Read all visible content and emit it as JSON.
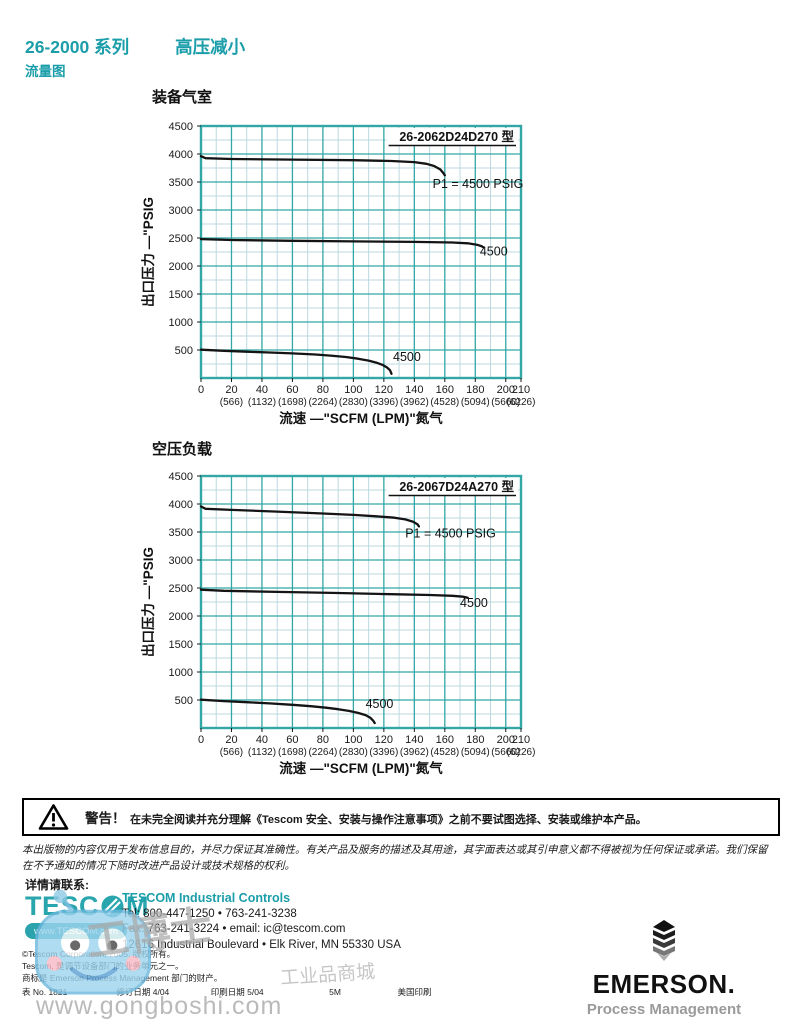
{
  "header": {
    "title": "26-2000 系列",
    "title2": "高压减小",
    "section": "流量图"
  },
  "colors": {
    "accent_teal": "#1b9ea9",
    "grid_major": "#33a6a6",
    "grid_minor": "#bcd9e0",
    "curve": "#141414"
  },
  "chart_data": [
    {
      "type": "line",
      "title": "装备气室",
      "model_label": "26-2062D24D270 型",
      "xlabel": "流速 —\"SCFM (LPM)\"氮气",
      "ylabel": "出口压力 —\"PSIG",
      "xlim": [
        0,
        210
      ],
      "ylim": [
        0,
        4500
      ],
      "x_major": 20,
      "x_minor": 10,
      "y_major": 500,
      "y_minor": 250,
      "x_ticks": [
        0,
        20,
        40,
        60,
        80,
        100,
        120,
        140,
        160,
        180,
        200,
        210
      ],
      "x_ticks_lpm": [
        "(566)",
        "(1132)",
        "(1698)",
        "(2264)",
        "(2830)",
        "(3396)",
        "(3962)",
        "(4528)",
        "(5094)",
        "(5660)",
        "(6226)"
      ],
      "y_ticks": [
        500,
        1000,
        1500,
        2000,
        2500,
        3000,
        3500,
        4000,
        4500
      ],
      "grid": true,
      "series": [
        {
          "name": "P1 = 4500 PSIG (outlet ~3900 PSIG)",
          "points": [
            [
              0,
              3960
            ],
            [
              3,
              3925
            ],
            [
              20,
              3910
            ],
            [
              60,
              3900
            ],
            [
              100,
              3890
            ],
            [
              125,
              3875
            ],
            [
              140,
              3855
            ],
            [
              148,
              3825
            ],
            [
              153,
              3785
            ],
            [
              157,
              3725
            ],
            [
              159,
              3660
            ],
            [
              160,
              3620
            ]
          ]
        },
        {
          "name": "outlet ~2450 PSIG, P1 = 4500",
          "points": [
            [
              0,
              2480
            ],
            [
              20,
              2465
            ],
            [
              60,
              2450
            ],
            [
              100,
              2440
            ],
            [
              140,
              2430
            ],
            [
              165,
              2420
            ],
            [
              175,
              2405
            ],
            [
              181,
              2380
            ],
            [
              184,
              2355
            ],
            [
              185,
              2340
            ]
          ]
        },
        {
          "name": "outlet ~500 PSIG, P1 = 4500",
          "points": [
            [
              0,
              505
            ],
            [
              15,
              485
            ],
            [
              30,
              470
            ],
            [
              45,
              455
            ],
            [
              60,
              440
            ],
            [
              75,
              420
            ],
            [
              85,
              400
            ],
            [
              95,
              375
            ],
            [
              103,
              345
            ],
            [
              110,
              310
            ],
            [
              115,
              275
            ],
            [
              119,
              235
            ],
            [
              122,
              190
            ],
            [
              124,
              140
            ],
            [
              125,
              75
            ]
          ]
        }
      ],
      "annotations": [
        {
          "text": "P1 = 4500 PSIG",
          "x": 152,
          "y": 3390,
          "anchor": "start"
        },
        {
          "text": "4500",
          "x": 183,
          "y": 2185,
          "anchor": "start"
        },
        {
          "text": "4500",
          "x": 126,
          "y": 300,
          "anchor": "start"
        }
      ]
    },
    {
      "type": "line",
      "title": "空压负载",
      "model_label": "26-2067D24A270 型",
      "xlabel": "流速 —\"SCFM (LPM)\"氮气",
      "ylabel": "出口压力 —\"PSIG",
      "xlim": [
        0,
        210
      ],
      "ylim": [
        0,
        4500
      ],
      "x_major": 20,
      "x_minor": 10,
      "y_major": 500,
      "y_minor": 250,
      "x_ticks": [
        0,
        20,
        40,
        60,
        80,
        100,
        120,
        140,
        160,
        180,
        200,
        210
      ],
      "x_ticks_lpm": [
        "(566)",
        "(1132)",
        "(1698)",
        "(2264)",
        "(2830)",
        "(3396)",
        "(3962)",
        "(4528)",
        "(5094)",
        "(5660)",
        "(6226)"
      ],
      "y_ticks": [
        500,
        1000,
        1500,
        2000,
        2500,
        3000,
        3500,
        4000,
        4500
      ],
      "grid": true,
      "series": [
        {
          "name": "P1 = 4500 PSIG (outlet ~3900 PSIG)",
          "points": [
            [
              0,
              3955
            ],
            [
              3,
              3915
            ],
            [
              20,
              3895
            ],
            [
              50,
              3865
            ],
            [
              80,
              3830
            ],
            [
              100,
              3805
            ],
            [
              115,
              3780
            ],
            [
              127,
              3755
            ],
            [
              134,
              3725
            ],
            [
              139,
              3685
            ],
            [
              142,
              3640
            ],
            [
              143,
              3600
            ]
          ]
        },
        {
          "name": "outlet ~2450 PSIG, P1 = 4500",
          "points": [
            [
              0,
              2470
            ],
            [
              15,
              2450
            ],
            [
              50,
              2430
            ],
            [
              90,
              2410
            ],
            [
              125,
              2390
            ],
            [
              150,
              2375
            ],
            [
              165,
              2360
            ],
            [
              172,
              2345
            ],
            [
              175,
              2325
            ]
          ]
        },
        {
          "name": "outlet ~500 PSIG, P1 = 4500",
          "points": [
            [
              0,
              505
            ],
            [
              15,
              480
            ],
            [
              30,
              460
            ],
            [
              45,
              440
            ],
            [
              60,
              415
            ],
            [
              72,
              390
            ],
            [
              82,
              362
            ],
            [
              90,
              335
            ],
            [
              97,
              305
            ],
            [
              103,
              270
            ],
            [
              108,
              230
            ],
            [
              111,
              185
            ],
            [
              113,
              130
            ],
            [
              114,
              90
            ]
          ]
        }
      ],
      "annotations": [
        {
          "text": "P1 = 4500 PSIG",
          "x": 134,
          "y": 3400,
          "anchor": "start"
        },
        {
          "text": "4500",
          "x": 170,
          "y": 2165,
          "anchor": "start"
        },
        {
          "text": "4500",
          "x": 108,
          "y": 355,
          "anchor": "start"
        }
      ]
    }
  ],
  "warning": {
    "label": "警告！",
    "text": "在未完全阅读并充分理解《Tescom 安全、安装与操作注意事项》之前不要试图选择、安装或维护本产品。"
  },
  "disclaimer": "本出版物的内容仅用于发布信息目的，并尽力保证其准确性。有关产品及服务的描述及其用途，其字面表达或其引申意义都不得被视为任何保证或承诺。我们保留在不予通知的情况下随时改进产品设计或技术规格的权利。",
  "contact_heading": "详情请联系:",
  "tescom_logo": {
    "text_left": "TESC",
    "text_right": "M",
    "url_pill": "www.TESCOM.com"
  },
  "contact": {
    "company": "TESCOM Industrial Controls",
    "lines": [
      "Tel: 800-447-1250  •  763-241-3238",
      "Fax: 763-241-3224  •  email: ic@tescom.com",
      "12616 Industrial Boulevard  •  Elk River, MN 55330 USA"
    ]
  },
  "footer": {
    "copyright_lines": [
      "©Tescom Corporation, 2005. 版权所有。",
      "Tescom, 是调节设备部门的业务单元之一。",
      "商标是 Emerson Process Management 部门的财产。"
    ],
    "doc_row": [
      "表 No. 1821",
      "修订日期 4/04",
      "印刷日期 5/04",
      "5M",
      "美国印刷"
    ]
  },
  "emerson": {
    "name": "EMERSON.",
    "division": "Process Management"
  },
  "watermark": {
    "brand": "工博士",
    "subtitle": "工业品商城",
    "url": "www.gongboshi.com"
  }
}
